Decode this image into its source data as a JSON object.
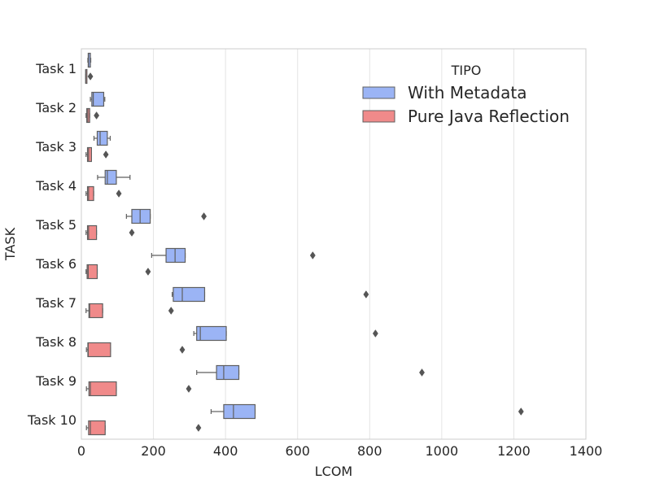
{
  "chart_data": {
    "type": "boxplot",
    "orientation": "horizontal",
    "title": "",
    "xlabel": "LCOM",
    "ylabel": "TASK",
    "xlim": [
      0,
      1400
    ],
    "xticks": [
      0,
      200,
      400,
      600,
      800,
      1000,
      1200,
      1400
    ],
    "grid": "vertical",
    "categories": [
      "Task 1",
      "Task 2",
      "Task 3",
      "Task 4",
      "Task 5",
      "Task 6",
      "Task 7",
      "Task 8",
      "Task 9",
      "Task 10"
    ],
    "legend": {
      "title": "TIPO",
      "position": "top-right"
    },
    "series": [
      {
        "name": "With Metadata",
        "color": "#9bb4f5",
        "boxes": [
          {
            "whislo": 18,
            "q1": 19,
            "med": 20,
            "q3": 25,
            "whishi": 26,
            "fliers": []
          },
          {
            "whislo": 25,
            "q1": 29,
            "med": 33,
            "q3": 62,
            "whishi": 65,
            "fliers": []
          },
          {
            "whislo": 35,
            "q1": 44,
            "med": 52,
            "q3": 72,
            "whishi": 80,
            "fliers": []
          },
          {
            "whislo": 45,
            "q1": 66,
            "med": 72,
            "q3": 97,
            "whishi": 135,
            "fliers": []
          },
          {
            "whislo": 125,
            "q1": 140,
            "med": 163,
            "q3": 191,
            "whishi": 191,
            "fliers": [
              340
            ]
          },
          {
            "whislo": 195,
            "q1": 235,
            "med": 260,
            "q3": 288,
            "whishi": 288,
            "fliers": [
              642
            ]
          },
          {
            "whislo": 252,
            "q1": 255,
            "med": 280,
            "q3": 342,
            "whishi": 342,
            "fliers": [
              790
            ]
          },
          {
            "whislo": 312,
            "q1": 320,
            "med": 330,
            "q3": 402,
            "whishi": 402,
            "fliers": [
              816
            ]
          },
          {
            "whislo": 320,
            "q1": 375,
            "med": 395,
            "q3": 437,
            "whishi": 437,
            "fliers": [
              945
            ]
          },
          {
            "whislo": 360,
            "q1": 395,
            "med": 422,
            "q3": 482,
            "whishi": 482,
            "fliers": [
              1220
            ]
          }
        ]
      },
      {
        "name": "Pure Java Reflection",
        "color": "#f08a8a",
        "boxes": [
          {
            "whislo": 12,
            "q1": 12,
            "med": 12,
            "q3": 13,
            "whishi": 14,
            "fliers": [
              25
            ]
          },
          {
            "whislo": 13,
            "q1": 15,
            "med": 18,
            "q3": 23,
            "whishi": 23,
            "fliers": [
              42
            ]
          },
          {
            "whislo": 13,
            "q1": 17,
            "med": 20,
            "q3": 28,
            "whishi": 28,
            "fliers": [
              68
            ]
          },
          {
            "whislo": 13,
            "q1": 17,
            "med": 20,
            "q3": 34,
            "whishi": 34,
            "fliers": [
              104
            ]
          },
          {
            "whislo": 13,
            "q1": 17,
            "med": 20,
            "q3": 42,
            "whishi": 42,
            "fliers": [
              140
            ]
          },
          {
            "whislo": 13,
            "q1": 16,
            "med": 19,
            "q3": 44,
            "whishi": 44,
            "fliers": [
              185
            ]
          },
          {
            "whislo": 13,
            "q1": 21,
            "med": 23,
            "q3": 59,
            "whishi": 59,
            "fliers": [
              249
            ]
          },
          {
            "whislo": 14,
            "q1": 18,
            "med": 19,
            "q3": 81,
            "whishi": 81,
            "fliers": [
              280
            ]
          },
          {
            "whislo": 14,
            "q1": 21,
            "med": 25,
            "q3": 97,
            "whishi": 97,
            "fliers": [
              298
            ]
          },
          {
            "whislo": 14,
            "q1": 20,
            "med": 25,
            "q3": 66,
            "whishi": 66,
            "fliers": [
              325
            ]
          }
        ]
      }
    ]
  }
}
